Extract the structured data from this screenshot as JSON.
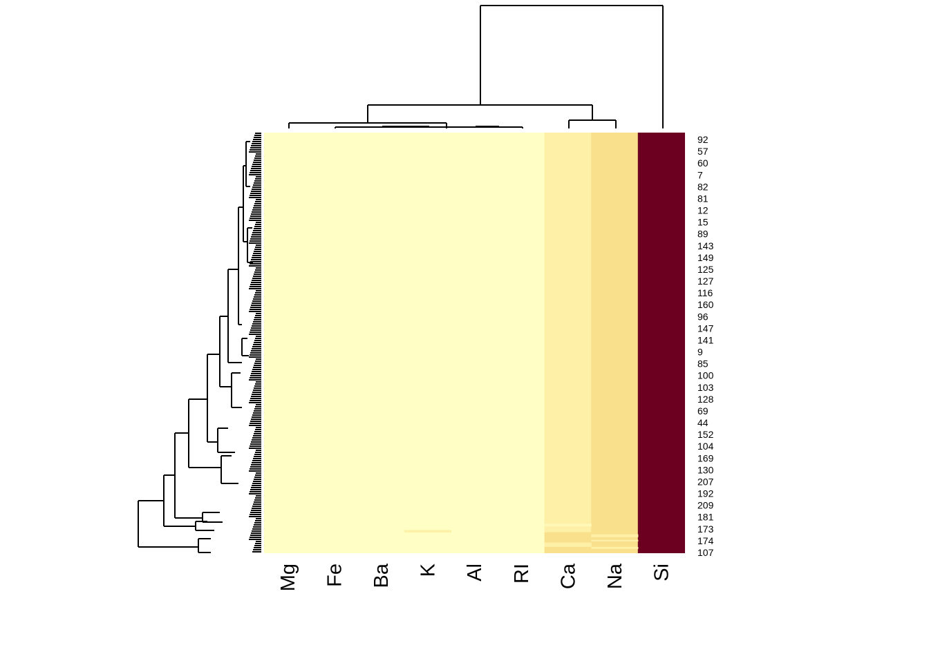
{
  "chart_data": {
    "type": "heatmap",
    "title": "",
    "xlabel": "",
    "ylabel": "",
    "columns": [
      "Mg",
      "Fe",
      "Ba",
      "K",
      "Al",
      "RI",
      "Ca",
      "Na",
      "Si"
    ],
    "row_labels": [
      "92",
      "57",
      "60",
      "7",
      "82",
      "81",
      "12",
      "15",
      "89",
      "143",
      "149",
      "125",
      "127",
      "116",
      "160",
      "96",
      "147",
      "141",
      "9",
      "85",
      "100",
      "103",
      "128",
      "69",
      "44",
      "152",
      "104",
      "169",
      "130",
      "207",
      "192",
      "209",
      "181",
      "173",
      "174",
      "107"
    ],
    "color_scale": [
      "#FFFFC5",
      "#FEF0A7",
      "#F9E08C",
      "#6B0020"
    ],
    "column_levels": {
      "Mg": 0.0,
      "Fe": 0.0,
      "Ba": 0.0,
      "K": 0.0,
      "Al": 0.0,
      "RI": 0.0,
      "Ca": 0.1,
      "Na": 0.2,
      "Si": 1.0
    },
    "row_variations": [
      {
        "column": "K",
        "row_fraction": [
          0.945,
          0.951
        ],
        "level": 0.1
      },
      {
        "column": "Ca",
        "row_fraction": [
          0.93,
          0.936
        ],
        "level": 0.05
      },
      {
        "column": "Ca",
        "row_fraction": [
          0.95,
          0.975
        ],
        "level": 0.2
      },
      {
        "column": "Ca",
        "row_fraction": [
          0.975,
          0.985
        ],
        "level": 0.1
      },
      {
        "column": "Ca",
        "row_fraction": [
          0.985,
          1.0
        ],
        "level": 0.2
      },
      {
        "column": "Na",
        "row_fraction": [
          0.955,
          0.962
        ],
        "level": 0.1
      },
      {
        "column": "Na",
        "row_fraction": [
          0.968,
          0.972
        ],
        "level": 0.1
      },
      {
        "column": "Na",
        "row_fraction": [
          0.985,
          0.99
        ],
        "level": 0.1
      }
    ],
    "legend": "none",
    "grid": false
  }
}
